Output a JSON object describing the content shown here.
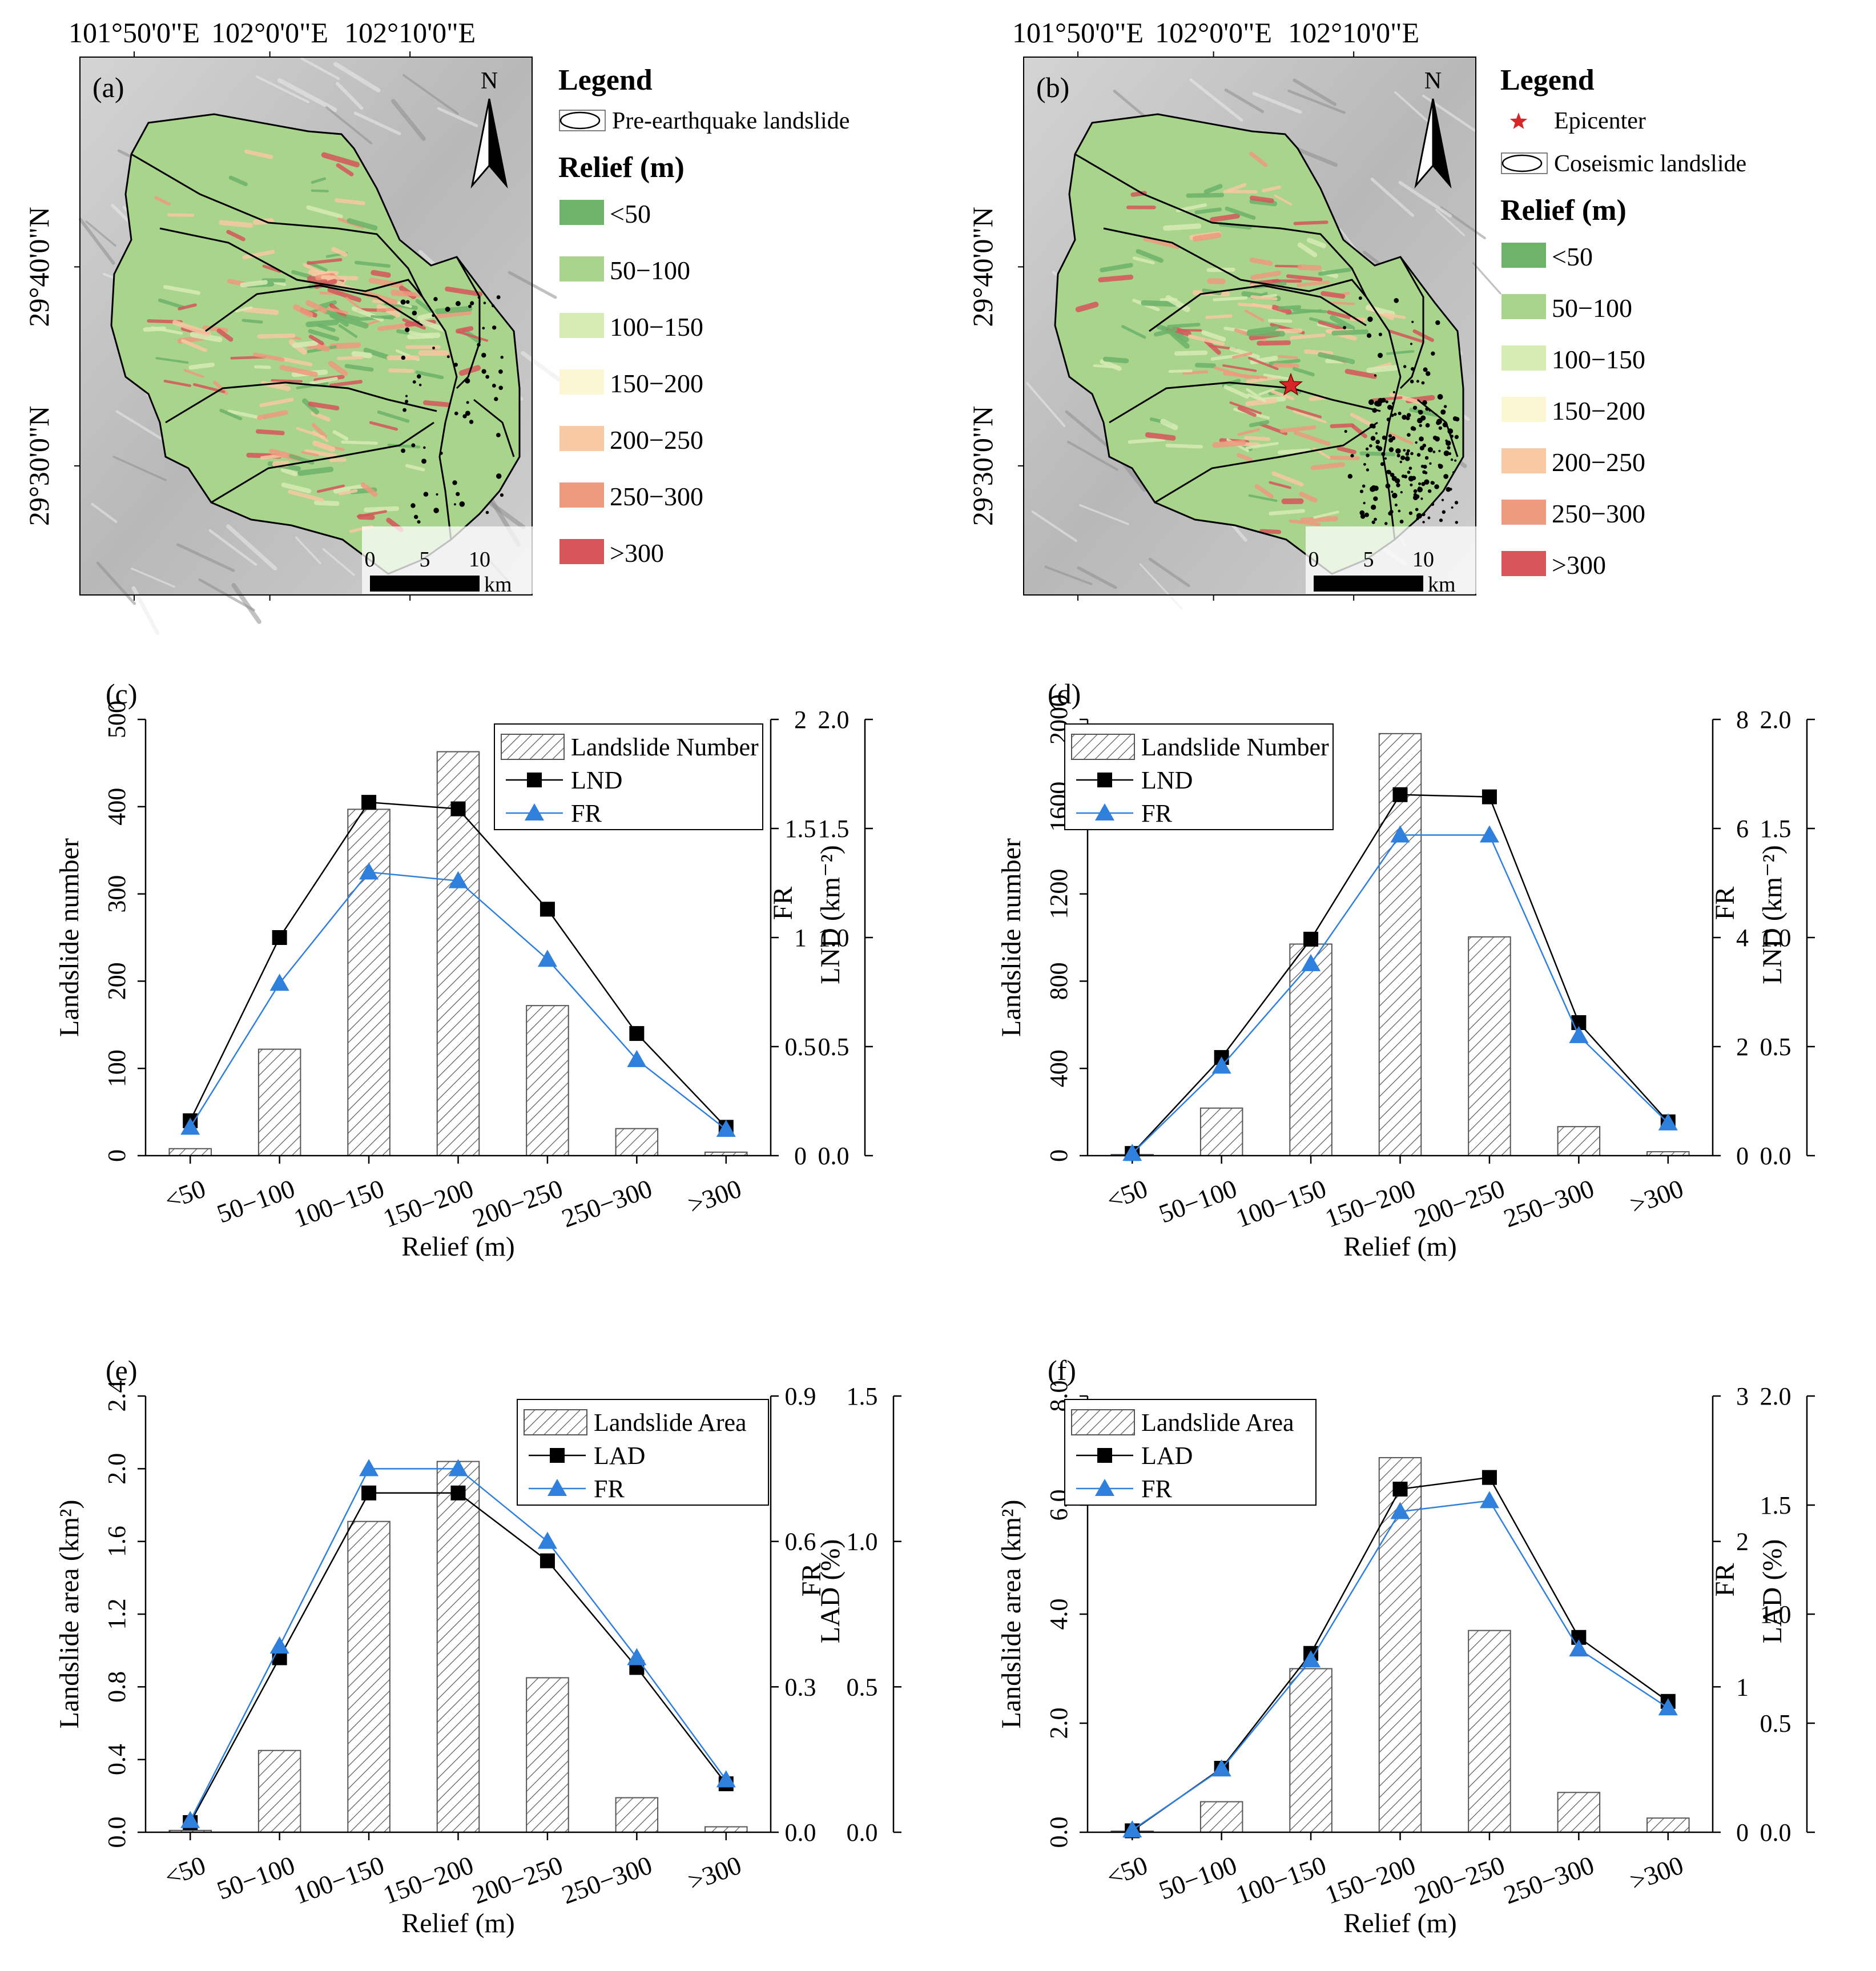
{
  "maps": [
    {
      "panel_label": "(a)",
      "lon_labels": [
        "101°50'0\"E",
        "102°0'0\"E",
        "102°10'0\"E"
      ],
      "lat_labels": [
        "29°40'0\"N",
        "29°30'0\"N"
      ],
      "north_label": "N",
      "scale_ticks": [
        "0",
        "5",
        "10"
      ],
      "scale_unit": "km",
      "legend_title": "Legend",
      "legend_symbols": [
        {
          "kind": "outline",
          "label": "Pre-earthquake landslide"
        }
      ],
      "relief_title": "Relief (m)",
      "landslide_color": "#000000"
    },
    {
      "panel_label": "(b)",
      "lon_labels": [
        "101°50'0\"E",
        "102°0'0\"E",
        "102°10'0\"E"
      ],
      "lat_labels": [
        "29°40'0\"N",
        "29°30'0\"N"
      ],
      "north_label": "N",
      "scale_ticks": [
        "0",
        "5",
        "10"
      ],
      "scale_unit": "km",
      "legend_title": "Legend",
      "legend_symbols": [
        {
          "kind": "star",
          "label": "Epicenter"
        },
        {
          "kind": "outline",
          "label": "Coseismic landslide"
        }
      ],
      "relief_title": "Relief (m)",
      "landslide_color": "#000000",
      "epicenter_color": "#d62728"
    }
  ],
  "relief_classes": [
    {
      "label": "<50",
      "color": "#6db36a"
    },
    {
      "label": "50−100",
      "color": "#a8d48c"
    },
    {
      "label": "100−150",
      "color": "#d7ecb5"
    },
    {
      "label": "150−200",
      "color": "#fbf7d4"
    },
    {
      "label": "200−250",
      "color": "#f9c9a3"
    },
    {
      "label": "250−300",
      "color": "#ee9a7e"
    },
    {
      "label": ">300",
      "color": "#d6565a"
    }
  ],
  "colors": {
    "line": "#000000",
    "fr": "#2f7fdc",
    "hatch": "#555555"
  },
  "chart_data": [
    {
      "panel": "(c)",
      "type": "bar+line",
      "categories": [
        "<50",
        "50−100",
        "100−150",
        "150−200",
        "200−250",
        "250−300",
        ">300"
      ],
      "xlabel": "Relief (m)",
      "ylabel": "Landslide number",
      "ylim": [
        0,
        500
      ],
      "yticks": [
        "0",
        "100",
        "200",
        "300",
        "400",
        "500"
      ],
      "y2label": "LND (km⁻²)",
      "y2lim": [
        0,
        2
      ],
      "y2ticks": [
        "0",
        "0.5",
        "1",
        "1.5",
        "2"
      ],
      "y3label": "FR",
      "y3lim": [
        0,
        2
      ],
      "y3ticks": [
        "0.0",
        "0.5",
        "1.0",
        "1.5",
        "2.0"
      ],
      "bar": {
        "name": "Landslide Number",
        "values": [
          8,
          122,
          397,
          463,
          172,
          31,
          4
        ]
      },
      "line": {
        "name": "LND",
        "values": [
          0.16,
          1.0,
          1.62,
          1.59,
          1.13,
          0.56,
          0.13
        ]
      },
      "fr": {
        "name": "FR",
        "values": [
          0.13,
          0.79,
          1.3,
          1.26,
          0.9,
          0.44,
          0.12
        ]
      },
      "legend": [
        "Landslide Number",
        "LND",
        "FR"
      ]
    },
    {
      "panel": "(d)",
      "type": "bar+line",
      "categories": [
        "<50",
        "50−100",
        "100−150",
        "150−200",
        "200−250",
        "250−300",
        ">300"
      ],
      "xlabel": "Relief (m)",
      "ylabel": "Landslide number",
      "ylim": [
        0,
        2000
      ],
      "yticks": [
        "0",
        "400",
        "800",
        "1200",
        "1600",
        "2000"
      ],
      "y2label": "LND (km⁻²)",
      "y2lim": [
        0,
        8
      ],
      "y2ticks": [
        "0",
        "2",
        "4",
        "6",
        "8"
      ],
      "y3label": "FR",
      "y3lim": [
        0,
        2
      ],
      "y3ticks": [
        "0.0",
        "0.5",
        "1.0",
        "1.5",
        "2.0"
      ],
      "bar": {
        "name": "Landslide Number",
        "values": [
          5,
          218,
          970,
          1935,
          1003,
          133,
          18
        ]
      },
      "line": {
        "name": "LND",
        "values": [
          0.04,
          1.8,
          3.97,
          6.62,
          6.58,
          2.44,
          0.62
        ]
      },
      "fr": {
        "name": "FR",
        "values": [
          0.01,
          0.41,
          0.88,
          1.47,
          1.47,
          0.55,
          0.15
        ]
      },
      "legend": [
        "Landslide Number",
        "LND",
        "FR"
      ]
    },
    {
      "panel": "(e)",
      "type": "bar+line",
      "categories": [
        "<50",
        "50−100",
        "100−150",
        "150−200",
        "200−250",
        "250−300",
        ">300"
      ],
      "xlabel": "Relief (m)",
      "ylabel": "Landslide area (km²)",
      "ylim": [
        0,
        2.4
      ],
      "yticks": [
        "0.0",
        "0.4",
        "0.8",
        "1.2",
        "1.6",
        "2.0",
        "2.4"
      ],
      "y2label": "LAD (%)",
      "y2lim": [
        0,
        0.9
      ],
      "y2ticks": [
        "0.0",
        "0.3",
        "0.6",
        "0.9"
      ],
      "y3label": "FR",
      "y3lim": [
        0,
        1.5
      ],
      "y3ticks": [
        "0.0",
        "0.5",
        "1.0",
        "1.5"
      ],
      "bar": {
        "name": "Landslide Area",
        "values": [
          0.01,
          0.45,
          1.71,
          2.04,
          0.85,
          0.19,
          0.03
        ]
      },
      "line": {
        "name": "LAD",
        "values": [
          0.02,
          0.36,
          0.7,
          0.7,
          0.56,
          0.34,
          0.1
        ]
      },
      "fr": {
        "name": "FR",
        "values": [
          0.04,
          0.64,
          1.25,
          1.25,
          1.0,
          0.6,
          0.18
        ]
      },
      "legend": [
        "Landslide Area",
        "LAD",
        "FR"
      ]
    },
    {
      "panel": "(f)",
      "type": "bar+line",
      "categories": [
        "<50",
        "50−100",
        "100−150",
        "150−200",
        "200−250",
        "250−300",
        ">300"
      ],
      "xlabel": "Relief (m)",
      "ylabel": "Landslide area (km²)",
      "ylim": [
        0,
        8.0
      ],
      "yticks": [
        "0.0",
        "2.0",
        "4.0",
        "6.0",
        "8.0"
      ],
      "y2label": "LAD (%)",
      "y2lim": [
        0,
        3
      ],
      "y2ticks": [
        "0",
        "1",
        "2",
        "3"
      ],
      "y3label": "FR",
      "y3lim": [
        0,
        2.0
      ],
      "y3ticks": [
        "0.0",
        "0.5",
        "1.0",
        "1.5",
        "2.0"
      ],
      "bar": {
        "name": "Landslide Area",
        "values": [
          0.02,
          0.56,
          3.0,
          6.87,
          3.7,
          0.73,
          0.26
        ]
      },
      "line": {
        "name": "LAD",
        "values": [
          0.01,
          0.44,
          1.23,
          2.36,
          2.44,
          1.34,
          0.9
        ]
      },
      "fr": {
        "name": "FR",
        "values": [
          0.01,
          0.29,
          0.79,
          1.47,
          1.52,
          0.84,
          0.57
        ]
      },
      "legend": [
        "Landslide Area",
        "LAD",
        "FR"
      ]
    }
  ]
}
